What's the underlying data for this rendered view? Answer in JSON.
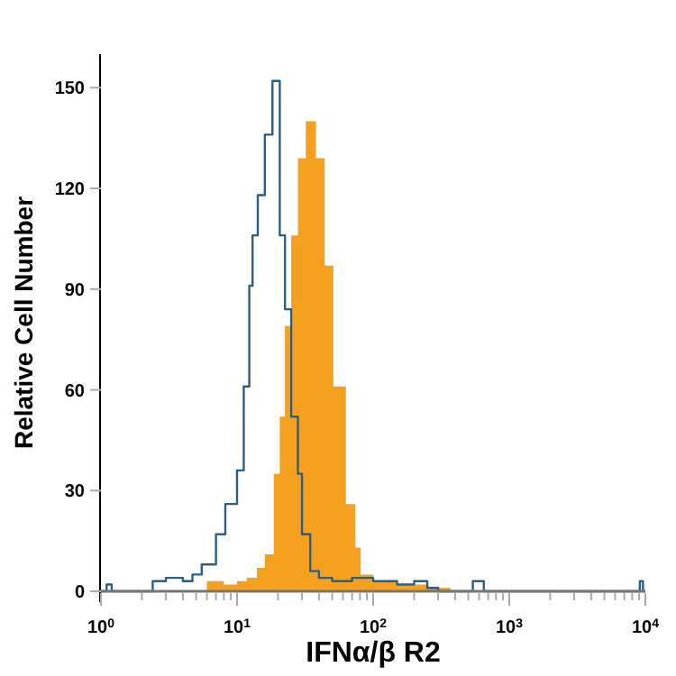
{
  "chart_data": {
    "type": "step",
    "xlabel": "IFNα/β R2",
    "ylabel": "Relative Cell Number",
    "log": "x",
    "xlim": [
      1,
      10000
    ],
    "ylim": [
      0,
      160
    ],
    "xticks": [
      {
        "value": 1,
        "label": "10$^{0}$"
      },
      {
        "value": 2,
        "label": null
      },
      {
        "value": 3,
        "label": null
      },
      {
        "value": 4,
        "label": null
      },
      {
        "value": 5,
        "label": null
      },
      {
        "value": 6,
        "label": null
      },
      {
        "value": 7,
        "label": null
      },
      {
        "value": 8,
        "label": null
      },
      {
        "value": 9,
        "label": null
      },
      {
        "value": 10,
        "label": "10$^{1}$"
      },
      {
        "value": 20,
        "label": null
      },
      {
        "value": 30,
        "label": null
      },
      {
        "value": 40,
        "label": null
      },
      {
        "value": 50,
        "label": null
      },
      {
        "value": 60,
        "label": null
      },
      {
        "value": 70,
        "label": null
      },
      {
        "value": 80,
        "label": null
      },
      {
        "value": 90,
        "label": null
      },
      {
        "value": 100,
        "label": "10$^{2}$"
      },
      {
        "value": 200,
        "label": null
      },
      {
        "value": 300,
        "label": null
      },
      {
        "value": 400,
        "label": null
      },
      {
        "value": 500,
        "label": null
      },
      {
        "value": 600,
        "label": null
      },
      {
        "value": 700,
        "label": null
      },
      {
        "value": 800,
        "label": null
      },
      {
        "value": 900,
        "label": null
      },
      {
        "value": 1000,
        "label": "10$^{3}$"
      },
      {
        "value": 2000,
        "label": null
      },
      {
        "value": 3000,
        "label": null
      },
      {
        "value": 4000,
        "label": null
      },
      {
        "value": 5000,
        "label": null
      },
      {
        "value": 6000,
        "label": null
      },
      {
        "value": 7000,
        "label": null
      },
      {
        "value": 8000,
        "label": null
      },
      {
        "value": 9000,
        "label": null
      },
      {
        "value": 10000,
        "label": "10$^{4}$"
      }
    ],
    "yticks": [
      0,
      30,
      60,
      90,
      120,
      150
    ],
    "grid": false,
    "series": [
      {
        "type": "area",
        "color": "#f5a01f",
        "x": [
          5.5,
          6,
          8,
          10,
          11.8,
          14,
          16,
          18.6,
          20.6,
          22.5,
          25,
          28,
          32,
          38,
          44,
          51,
          63,
          74,
          81,
          100,
          150,
          200,
          250,
          370
        ],
        "values": [
          0,
          3,
          2,
          3,
          4,
          7,
          11,
          35,
          52,
          79,
          106,
          129,
          140,
          129,
          97,
          61,
          26,
          13,
          5,
          3,
          2,
          2,
          1,
          0
        ]
      },
      {
        "color": "#2a5f8a",
        "x": [
          1,
          1.1,
          1.2,
          2.4,
          3,
          4,
          4.7,
          5.5,
          7,
          8.2,
          10,
          11.2,
          12.3,
          13,
          14.2,
          16,
          18.2,
          20.6,
          22.5,
          25,
          28,
          30,
          34.5,
          40,
          50,
          70,
          100,
          150,
          200,
          250,
          300,
          450,
          540,
          650,
          800,
          2000,
          5000,
          8800,
          9100,
          9600,
          10000
        ],
        "values": [
          0,
          2,
          0,
          3,
          4,
          3,
          5,
          8,
          17,
          26,
          36,
          61,
          91,
          106,
          118,
          136,
          152,
          106,
          84,
          52,
          35,
          17,
          6,
          4,
          3,
          4,
          3,
          2,
          3,
          1,
          0,
          0,
          3,
          0,
          0,
          0,
          0,
          0,
          3,
          0,
          0
        ]
      }
    ]
  }
}
